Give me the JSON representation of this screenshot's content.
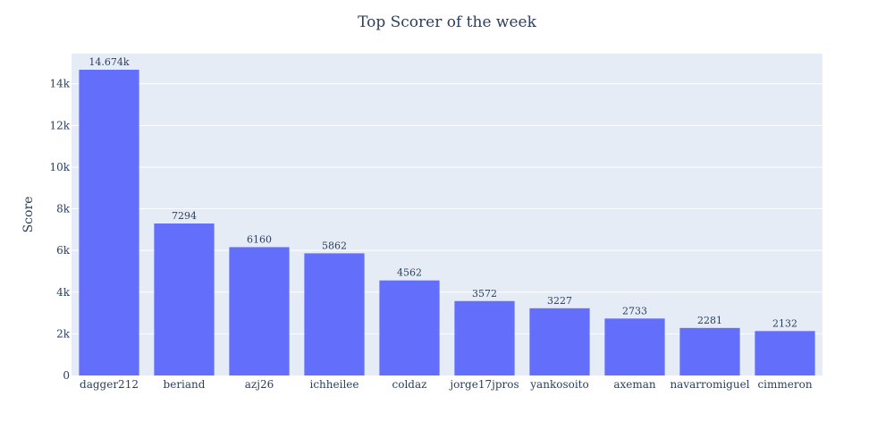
{
  "chart_data": {
    "type": "bar",
    "title": "Top Scorer of the week",
    "xlabel": "",
    "ylabel": "Score",
    "categories": [
      "dagger212",
      "beriand",
      "azj26",
      "ichheilee",
      "coldaz",
      "jorge17jpros",
      "yankosoito",
      "axeman",
      "navarromiguel",
      "cimmeron"
    ],
    "values": [
      14674,
      7294,
      6160,
      5862,
      4562,
      3572,
      3227,
      2733,
      2281,
      2132
    ],
    "value_labels": [
      "14.674k",
      "7294",
      "6160",
      "5862",
      "4562",
      "3572",
      "3227",
      "2733",
      "2281",
      "2132"
    ],
    "ylim": [
      0,
      15447
    ],
    "yticks": [
      0,
      2000,
      4000,
      6000,
      8000,
      10000,
      12000,
      14000
    ],
    "ytick_labels": [
      "0",
      "2k",
      "4k",
      "6k",
      "8k",
      "10k",
      "12k",
      "14k"
    ],
    "grid": true,
    "legend": "none",
    "bar_color": "#636efa",
    "plot_bg": "#e5ecf6",
    "grid_color": "#ffffff",
    "text_color": "#2a3f5f"
  }
}
